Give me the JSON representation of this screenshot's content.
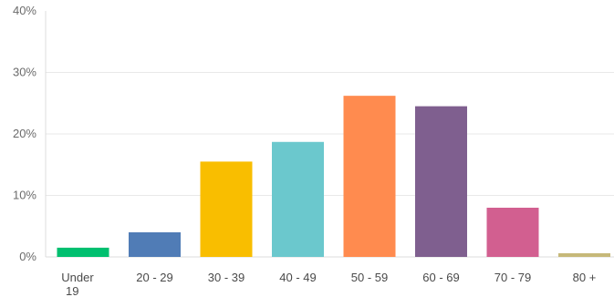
{
  "chart_data": {
    "type": "bar",
    "title": "",
    "xlabel": "",
    "ylabel": "",
    "categories": [
      "Under 19",
      "20 - 29",
      "30 - 39",
      "40 - 49",
      "50 - 59",
      "60 - 69",
      "70 - 79",
      "80 +"
    ],
    "values": [
      1.5,
      4.0,
      15.5,
      18.7,
      26.2,
      24.5,
      8.0,
      0.6
    ],
    "colors": [
      "#00bf6f",
      "#507cb6",
      "#f9be00",
      "#6bc8cd",
      "#ff8b4f",
      "#7f5f8f",
      "#d25f90",
      "#c6b879"
    ],
    "ylim": [
      0,
      40
    ],
    "yticks": [
      {
        "value": 0,
        "label": "0%"
      },
      {
        "value": 10,
        "label": "10%"
      },
      {
        "value": 20,
        "label": "20%"
      },
      {
        "value": 30,
        "label": "30%"
      },
      {
        "value": 40,
        "label": "40%"
      }
    ],
    "unit": "%",
    "grid": true,
    "legend": "none"
  }
}
